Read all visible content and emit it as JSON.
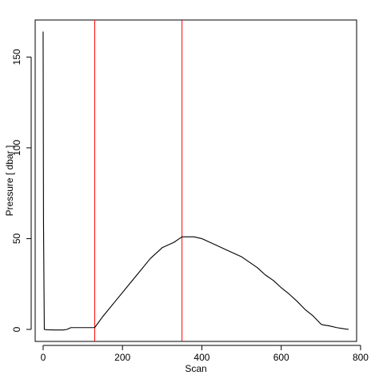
{
  "chart_data": {
    "type": "line",
    "title": "",
    "xlabel": "Scan",
    "ylabel": "Pressure [ dbar ]",
    "xlim": [
      -20,
      790
    ],
    "ylim": [
      -6.6,
      170.4
    ],
    "xticks": [
      0,
      200,
      400,
      600,
      800
    ],
    "yticks": [
      0,
      50,
      100,
      150
    ],
    "xtick_labels": [
      "0",
      "200",
      "400",
      "600",
      "800"
    ],
    "ytick_labels": [
      "0",
      "50",
      "100",
      "150"
    ],
    "grid": false,
    "legend": "none",
    "series": [
      {
        "color": "#000000",
        "x": [
          0,
          1,
          3,
          10,
          30,
          50,
          60,
          70,
          80,
          100,
          110,
          120,
          130,
          150,
          180,
          210,
          240,
          270,
          300,
          310,
          320,
          330,
          340,
          350,
          360,
          380,
          400,
          420,
          440,
          460,
          480,
          500,
          520,
          540,
          560,
          580,
          600,
          620,
          640,
          660,
          680,
          700,
          705,
          720,
          740,
          760,
          770
        ],
        "y": [
          164,
          60,
          0,
          -0.2,
          -0.3,
          -0.3,
          0,
          1,
          1,
          1,
          1,
          1,
          1,
          7,
          15,
          23,
          31,
          39,
          45,
          46,
          47,
          48,
          49.5,
          51,
          51,
          51,
          50,
          48,
          46,
          44,
          42,
          40,
          37,
          34,
          30,
          27,
          23,
          19.5,
          15.5,
          11,
          7.5,
          3,
          2.5,
          2,
          1,
          0.3,
          0
        ]
      }
    ],
    "vlines": [
      {
        "x": 130,
        "color": "#ff0000"
      },
      {
        "x": 350,
        "color": "#ff0000"
      }
    ]
  }
}
